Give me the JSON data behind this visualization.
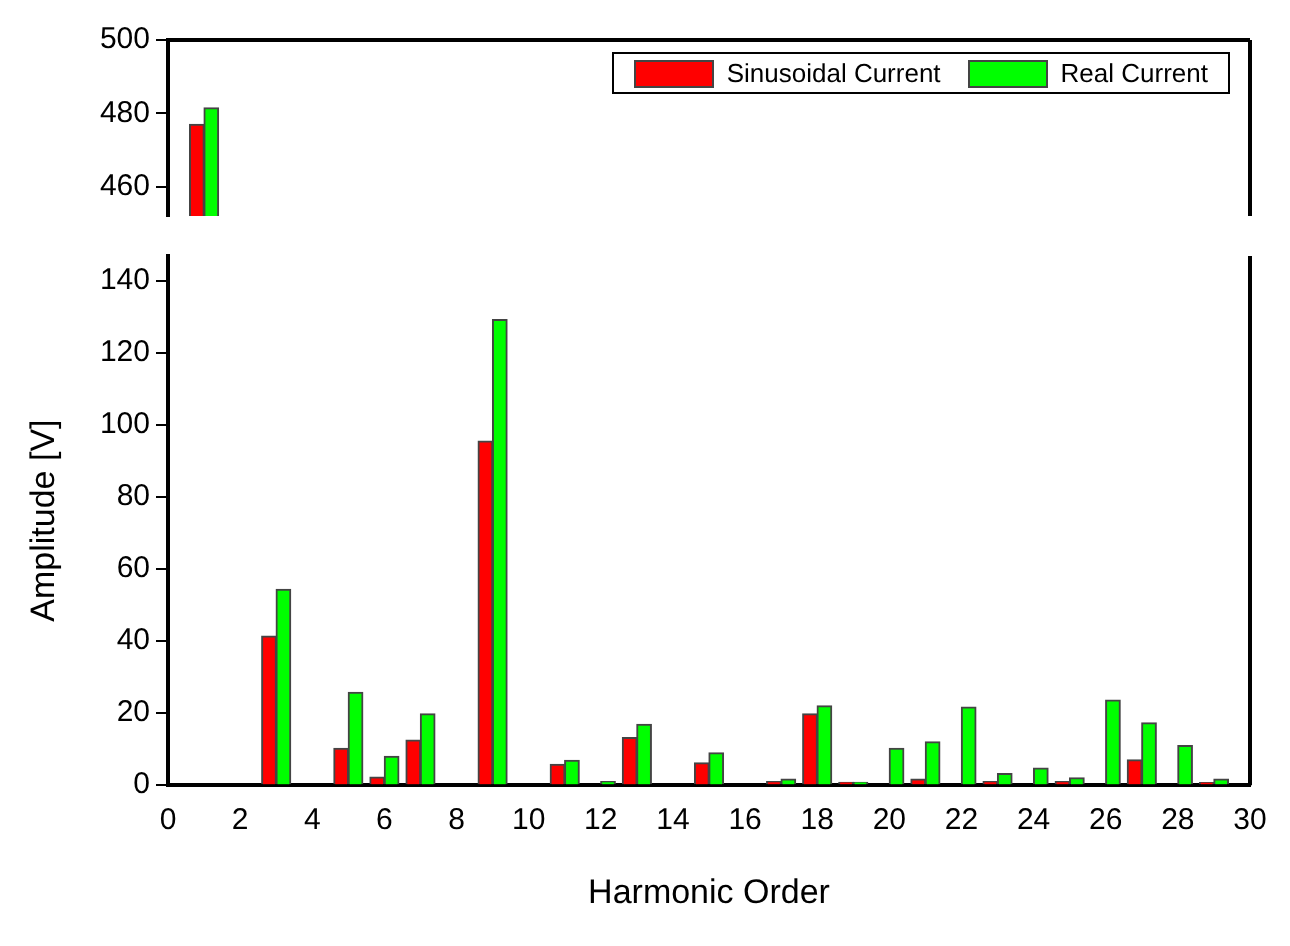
{
  "chart_data": [
    {
      "type": "bar",
      "x": [
        1
      ],
      "series": [
        {
          "name": "Sinusoidal Current",
          "color": "#ff0000",
          "values": [
            477
          ]
        },
        {
          "name": "Real Current",
          "color": "#00ff00",
          "values": [
            481.5
          ]
        }
      ],
      "xlim": [
        0,
        30
      ],
      "ylim": [
        452,
        500
      ],
      "yticks": [
        460,
        480,
        500
      ],
      "tick_labels": "y",
      "legend": "top right",
      "grid": false
    },
    {
      "type": "bar",
      "x": [
        3,
        5,
        6,
        7,
        9,
        11,
        12,
        13,
        15,
        17,
        18,
        19,
        20,
        21,
        22,
        23,
        24,
        25,
        26,
        27,
        28,
        29
      ],
      "series": [
        {
          "color": "#ff0000",
          "values": [
            41.4,
            10.2,
            2.2,
            12.5,
            95.6,
            5.8,
            null,
            13.2,
            6.2,
            1,
            19.8,
            0.8,
            null,
            1.7,
            null,
            1,
            null,
            1,
            null,
            7,
            null,
            0.7
          ]
        },
        {
          "color": "#00ff00",
          "values": [
            54.4,
            25.8,
            8,
            19.8,
            129.3,
            6.9,
            1,
            16.9,
            9,
            1.7,
            22,
            0.8,
            10.2,
            12,
            21.7,
            3.2,
            4.7,
            2,
            23.6,
            17.3,
            11,
            1.7
          ]
        }
      ],
      "xlim": [
        0,
        30
      ],
      "xticks": [
        0,
        2,
        4,
        6,
        8,
        10,
        12,
        14,
        16,
        18,
        20,
        22,
        24,
        26,
        28,
        30
      ],
      "ylim": [
        0,
        147
      ],
      "yticks": [
        0,
        20,
        40,
        60,
        80,
        100,
        120,
        140
      ],
      "xlabel": "Harmonic Order",
      "ylabel": "Amplitude [V]",
      "grid": false
    }
  ]
}
